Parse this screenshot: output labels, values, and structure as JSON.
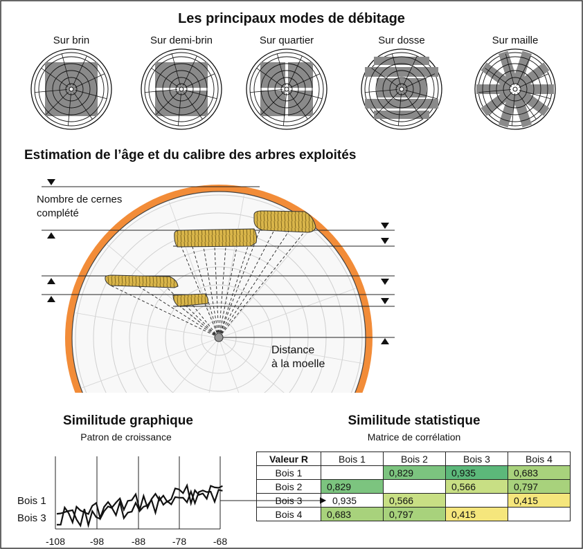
{
  "debitage": {
    "title": "Les principaux modes de débitage",
    "modes": [
      "Sur brin",
      "Sur demi-brin",
      "Sur quartier",
      "Sur dosse",
      "Sur maille"
    ]
  },
  "estimation": {
    "title": "Estimation de l’âge et du calibre des arbres exploités",
    "label_cernes_line1": "Nombre de cernes",
    "label_cernes_line2": "complété",
    "label_distance_line1": "Distance",
    "label_distance_line2": "à la moelle"
  },
  "graphique": {
    "title": "Similitude graphique",
    "subtitle": "Patron de croissance",
    "series_labels": [
      "Bois 1",
      "Bois 3"
    ],
    "x_ticks": [
      "-108",
      "-98",
      "-88",
      "-78",
      "-68"
    ]
  },
  "statistique": {
    "title": "Similitude statistique",
    "subtitle": "Matrice de corrélation",
    "corner": "Valeur R",
    "columns": [
      "Bois 1",
      "Bois 2",
      "Bois 3",
      "Bois 4"
    ],
    "rows": [
      {
        "label": "Bois 1",
        "cells": [
          "",
          "0,829",
          "0,935",
          "0,683"
        ]
      },
      {
        "label": "Bois 2",
        "cells": [
          "0,829",
          "",
          "0,566",
          "0,797"
        ]
      },
      {
        "label": "Bois 3",
        "cells": [
          "0,935",
          "0,566",
          "",
          "0,415"
        ]
      },
      {
        "label": "Bois 4",
        "cells": [
          "0,683",
          "0,797",
          "0,415",
          ""
        ]
      }
    ],
    "colors": {
      "0,935": "#5cb87a",
      "0,829": "#7cc47f",
      "0,797": "#a8d27c",
      "0,683": "#a8d27c",
      "0,566": "#c8df84",
      "0,415": "#f5e67c"
    }
  },
  "colors": {
    "bark": "#f28c38",
    "wood": "#d9b54a",
    "gray_block": "#8a8a8a"
  }
}
